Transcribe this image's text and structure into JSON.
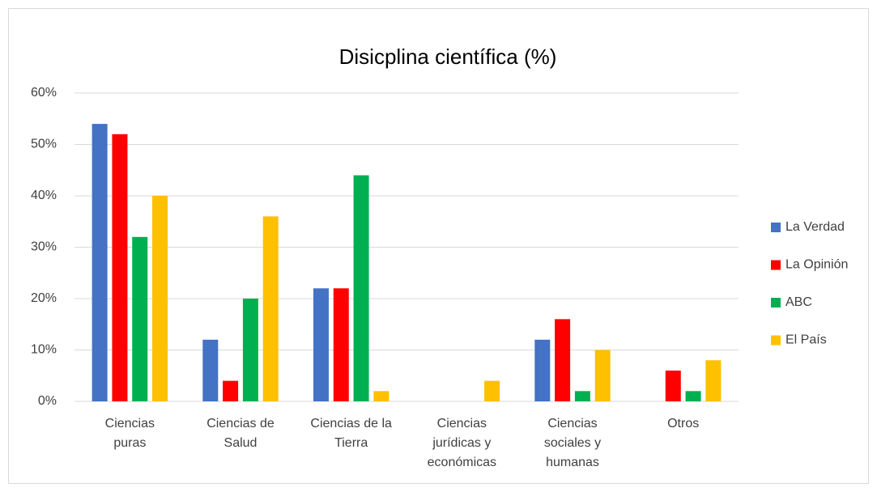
{
  "chart_data": {
    "type": "bar",
    "title": "Disicplina científica (%)",
    "categories": [
      "Ciencias\npuras",
      "Ciencias de\nSalud",
      "Ciencias de la\nTierra",
      "Ciencias\njurídicas y\neconómicas",
      "Ciencias\nsociales y\nhumanas",
      "Otros"
    ],
    "series": [
      {
        "name": "La Verdad",
        "color": "#4472c4",
        "values": [
          54,
          12,
          22,
          0,
          12,
          0
        ]
      },
      {
        "name": "La Opinión",
        "color": "#ff0000",
        "values": [
          52,
          4,
          22,
          0,
          16,
          6
        ]
      },
      {
        "name": "ABC",
        "color": "#00b050",
        "values": [
          32,
          20,
          44,
          0,
          2,
          2
        ]
      },
      {
        "name": "El País",
        "color": "#ffc000",
        "values": [
          40,
          36,
          2,
          4,
          10,
          8
        ]
      }
    ],
    "ylim": [
      0,
      60
    ],
    "yticks": [
      {
        "value": 0,
        "label": "0%"
      },
      {
        "value": 10,
        "label": "10%"
      },
      {
        "value": 20,
        "label": "20%"
      },
      {
        "value": 30,
        "label": "30%"
      },
      {
        "value": 40,
        "label": "40%"
      },
      {
        "value": 50,
        "label": "50%"
      },
      {
        "value": 60,
        "label": "60%"
      }
    ],
    "grid": true,
    "legend": "right"
  }
}
